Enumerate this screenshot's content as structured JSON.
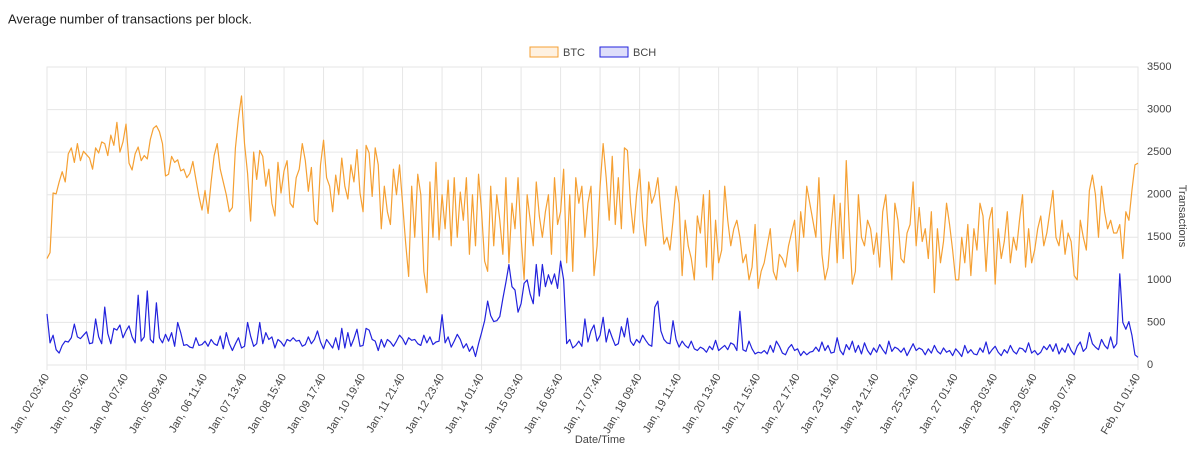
{
  "chart_data": {
    "type": "line",
    "title": "Average number of transactions per block.",
    "x_label": "Date/Time",
    "y_label": "Transactions",
    "grid": true,
    "legend": "top",
    "ylim": [
      0,
      3500
    ],
    "yticks": [
      0,
      500,
      1000,
      1500,
      2000,
      2500,
      3000,
      3500
    ],
    "categories": [
      "Jan, 02 03:40",
      null,
      null,
      null,
      null,
      null,
      null,
      null,
      null,
      null,
      null,
      null,
      null,
      "Jan, 03 05:40",
      null,
      null,
      null,
      null,
      null,
      null,
      null,
      null,
      null,
      null,
      null,
      null,
      "Jan, 04 07:40",
      null,
      null,
      null,
      null,
      null,
      null,
      null,
      null,
      null,
      null,
      null,
      null,
      "Jan, 05 09:40",
      null,
      null,
      null,
      null,
      null,
      null,
      null,
      null,
      null,
      null,
      null,
      null,
      "Jan, 06 11:40",
      null,
      null,
      null,
      null,
      null,
      null,
      null,
      null,
      null,
      null,
      null,
      null,
      "Jan, 07 13:40",
      null,
      null,
      null,
      null,
      null,
      null,
      null,
      null,
      null,
      null,
      null,
      null,
      "Jan, 08 15:40",
      null,
      null,
      null,
      null,
      null,
      null,
      null,
      null,
      null,
      null,
      null,
      null,
      "Jan, 09 17:40",
      null,
      null,
      null,
      null,
      null,
      null,
      null,
      null,
      null,
      null,
      null,
      null,
      "Jan, 10 19:40",
      null,
      null,
      null,
      null,
      null,
      null,
      null,
      null,
      null,
      null,
      null,
      null,
      "Jan, 11 21:40",
      null,
      null,
      null,
      null,
      null,
      null,
      null,
      null,
      null,
      null,
      null,
      null,
      "Jan, 12 23:40",
      null,
      null,
      null,
      null,
      null,
      null,
      null,
      null,
      null,
      null,
      null,
      null,
      "Jan, 14 01:40",
      null,
      null,
      null,
      null,
      null,
      null,
      null,
      null,
      null,
      null,
      null,
      null,
      "Jan, 15 03:40",
      null,
      null,
      null,
      null,
      null,
      null,
      null,
      null,
      null,
      null,
      null,
      null,
      "Jan, 16 05:40",
      null,
      null,
      null,
      null,
      null,
      null,
      null,
      null,
      null,
      null,
      null,
      null,
      "Jan, 17 07:40",
      null,
      null,
      null,
      null,
      null,
      null,
      null,
      null,
      null,
      null,
      null,
      null,
      "Jan, 18 09:40",
      null,
      null,
      null,
      null,
      null,
      null,
      null,
      null,
      null,
      null,
      null,
      null,
      "Jan, 19 11:40",
      null,
      null,
      null,
      null,
      null,
      null,
      null,
      null,
      null,
      null,
      null,
      null,
      "Jan, 20 13:40",
      null,
      null,
      null,
      null,
      null,
      null,
      null,
      null,
      null,
      null,
      null,
      null,
      "Jan, 21 15:40",
      null,
      null,
      null,
      null,
      null,
      null,
      null,
      null,
      null,
      null,
      null,
      null,
      "Jan, 22 17:40",
      null,
      null,
      null,
      null,
      null,
      null,
      null,
      null,
      null,
      null,
      null,
      null,
      "Jan, 23 19:40",
      null,
      null,
      null,
      null,
      null,
      null,
      null,
      null,
      null,
      null,
      null,
      null,
      "Jan, 24 21:40",
      null,
      null,
      null,
      null,
      null,
      null,
      null,
      null,
      null,
      null,
      null,
      null,
      "Jan, 25 23:40",
      null,
      null,
      null,
      null,
      null,
      null,
      null,
      null,
      null,
      null,
      null,
      null,
      "Jan, 27 01:40",
      null,
      null,
      null,
      null,
      null,
      null,
      null,
      null,
      null,
      null,
      null,
      null,
      "Jan, 28 03:40",
      null,
      null,
      null,
      null,
      null,
      null,
      null,
      null,
      null,
      null,
      null,
      null,
      "Jan, 29 05:40",
      null,
      null,
      null,
      null,
      null,
      null,
      null,
      null,
      null,
      null,
      null,
      null,
      "Jan, 30 07:40",
      null,
      null,
      null,
      null,
      null,
      null,
      null,
      null,
      null,
      null,
      null,
      null,
      null,
      null,
      null,
      null,
      null,
      null,
      null,
      null,
      "Feb, 01 01:40"
    ],
    "series": [
      {
        "name": "BTC",
        "color": "#f5a033",
        "values": [
          1250,
          1320,
          2020,
          2010,
          2150,
          2270,
          2150,
          2480,
          2550,
          2380,
          2600,
          2400,
          2510,
          2470,
          2430,
          2300,
          2550,
          2490,
          2620,
          2600,
          2460,
          2700,
          2580,
          2850,
          2500,
          2620,
          2830,
          2370,
          2290,
          2480,
          2560,
          2400,
          2460,
          2420,
          2650,
          2780,
          2810,
          2740,
          2600,
          2220,
          2240,
          2450,
          2380,
          2410,
          2280,
          2300,
          2200,
          2250,
          2390,
          2180,
          1980,
          1820,
          2050,
          1780,
          2150,
          2460,
          2600,
          2300,
          2150,
          2000,
          1800,
          1850,
          2550,
          2900,
          3160,
          2600,
          2250,
          1690,
          2500,
          2180,
          2520,
          2450,
          2100,
          2300,
          1900,
          1750,
          2380,
          2020,
          2280,
          2400,
          1900,
          1850,
          2200,
          2300,
          2600,
          2400,
          2040,
          2320,
          1700,
          1650,
          2350,
          2640,
          2200,
          2100,
          1800,
          2230,
          2000,
          2430,
          2100,
          1950,
          2350,
          2150,
          2530,
          2020,
          1800,
          2580,
          2490,
          1980,
          2550,
          2350,
          1600,
          2100,
          1800,
          1650,
          2300,
          2000,
          2350,
          1900,
          1440,
          1040,
          2100,
          1500,
          2240,
          2000,
          1100,
          850,
          2150,
          1500,
          2380,
          1470,
          2000,
          1600,
          2170,
          1400,
          2200,
          1500,
          2030,
          1700,
          2200,
          1300,
          2000,
          1400,
          2240,
          1800,
          1220,
          1100,
          2100,
          1400,
          2000,
          1700,
          1300,
          2200,
          1200,
          1900,
          1600,
          2200,
          1500,
          1000,
          2000,
          1700,
          1400,
          2150,
          1750,
          1500,
          1800,
          2000,
          1300,
          2200,
          1650,
          1800,
          2300,
          1200,
          2000,
          1100,
          2200,
          1900,
          2100,
          1500,
          1900,
          2100,
          1050,
          1400,
          2100,
          2600,
          2200,
          1700,
          2450,
          1650,
          2200,
          1600,
          2550,
          2520,
          1900,
          1550,
          2000,
          2300,
          1700,
          1400,
          2150,
          1900,
          2000,
          2200,
          1800,
          1420,
          1500,
          1350,
          1700,
          2100,
          1900,
          1050,
          1700,
          1400,
          1250,
          1000,
          1750,
          1550,
          2000,
          1150,
          2050,
          1000,
          1700,
          1200,
          1350,
          2100,
          1700,
          1400,
          1600,
          1700,
          1500,
          1200,
          1300,
          1000,
          1150,
          1650,
          900,
          1100,
          1200,
          1400,
          1600,
          1100,
          1000,
          1300,
          1250,
          1150,
          1400,
          1550,
          1700,
          1100,
          1800,
          1500,
          2100,
          1900,
          1700,
          1500,
          2200,
          1300,
          1000,
          1150,
          1600,
          2000,
          1200,
          1900,
          1250,
          2400,
          1600,
          950,
          1100,
          2000,
          1500,
          1400,
          1700,
          1600,
          1300,
          1550,
          1150,
          1800,
          2000,
          1500,
          1000,
          1900,
          1700,
          1250,
          1200,
          1550,
          1650,
          2150,
          1400,
          1850,
          1450,
          1600,
          1250,
          1800,
          850,
          1600,
          1200,
          1450,
          1900,
          1650,
          1350,
          1000,
          1000,
          1500,
          1200,
          1650,
          1050,
          1600,
          1350,
          1900,
          1750,
          1100,
          1700,
          1850,
          950,
          1600,
          1250,
          1450,
          1800,
          1200,
          1500,
          1350,
          1700,
          2000,
          1150,
          1600,
          1200,
          1350,
          1600,
          1750,
          1400,
          1550,
          1800,
          2050,
          1500,
          1400,
          1700,
          1300,
          1550,
          1450,
          1050,
          1000,
          1700,
          1500,
          1350,
          2050,
          2230,
          2000,
          1500,
          2100,
          1800,
          1600,
          1700,
          1550,
          1550,
          1650,
          1250,
          1800,
          1700,
          2050,
          2350,
          2370
        ]
      },
      {
        "name": "BCH",
        "color": "#2222dd",
        "values": [
          600,
          260,
          350,
          180,
          140,
          230,
          280,
          270,
          320,
          480,
          330,
          310,
          350,
          390,
          250,
          260,
          540,
          330,
          250,
          680,
          370,
          250,
          430,
          410,
          470,
          320,
          400,
          460,
          330,
          260,
          820,
          280,
          330,
          870,
          300,
          260,
          730,
          320,
          260,
          360,
          280,
          380,
          220,
          500,
          380,
          230,
          240,
          210,
          200,
          320,
          230,
          240,
          280,
          220,
          300,
          250,
          230,
          340,
          190,
          380,
          250,
          170,
          250,
          320,
          200,
          220,
          500,
          340,
          220,
          250,
          500,
          250,
          380,
          300,
          330,
          200,
          300,
          270,
          220,
          300,
          280,
          320,
          280,
          290,
          220,
          240,
          330,
          250,
          300,
          400,
          270,
          190,
          300,
          250,
          200,
          320,
          180,
          430,
          200,
          380,
          220,
          310,
          420,
          220,
          230,
          430,
          410,
          300,
          280,
          170,
          300,
          210,
          300,
          270,
          220,
          280,
          350,
          310,
          240,
          320,
          290,
          300,
          250,
          230,
          350,
          260,
          330,
          240,
          270,
          280,
          590,
          260,
          330,
          210,
          280,
          360,
          300,
          200,
          250,
          160,
          220,
          100,
          250,
          380,
          520,
          750,
          580,
          510,
          520,
          570,
          780,
          970,
          1180,
          920,
          880,
          620,
          720,
          960,
          1000,
          830,
          720,
          1180,
          810,
          1180,
          920,
          1060,
          950,
          1070,
          900,
          1220,
          1000,
          250,
          300,
          200,
          230,
          280,
          220,
          540,
          270,
          400,
          470,
          280,
          350,
          560,
          270,
          420,
          320,
          230,
          250,
          450,
          330,
          550,
          280,
          230,
          300,
          260,
          350,
          290,
          240,
          220,
          680,
          750,
          400,
          300,
          260,
          250,
          520,
          300,
          210,
          280,
          230,
          200,
          280,
          190,
          170,
          210,
          190,
          150,
          220,
          180,
          290,
          170,
          200,
          230,
          180,
          260,
          240,
          170,
          630,
          180,
          160,
          280,
          190,
          130,
          150,
          140,
          170,
          130,
          230,
          150,
          280,
          220,
          140,
          120,
          200,
          240,
          170,
          190,
          110,
          160,
          120,
          150,
          160,
          210,
          160,
          270,
          170,
          230,
          140,
          150,
          320,
          170,
          120,
          240,
          180,
          280,
          150,
          230,
          130,
          260,
          170,
          120,
          200,
          150,
          240,
          180,
          130,
          280,
          160,
          210,
          190,
          150,
          200,
          110,
          180,
          250,
          170,
          200,
          180,
          120,
          190,
          140,
          230,
          160,
          130,
          200,
          150,
          170,
          110,
          190,
          150,
          100,
          230,
          140,
          180,
          130,
          120,
          200,
          150,
          270,
          130,
          180,
          220,
          150,
          110,
          180,
          140,
          230,
          160,
          130,
          200,
          190,
          150,
          260,
          140,
          170,
          120,
          150,
          220,
          180,
          240,
          160,
          250,
          130,
          200,
          150,
          250,
          170,
          120,
          220,
          270,
          160,
          200,
          380,
          250,
          210,
          180,
          300,
          230,
          190,
          330,
          200,
          250,
          1070,
          500,
          420,
          510,
          350,
          120,
          90
        ]
      }
    ]
  }
}
